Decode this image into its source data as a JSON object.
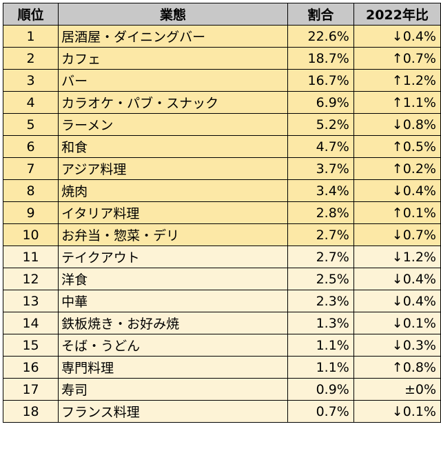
{
  "headers": {
    "rank": "順位",
    "category": "業態",
    "share": "割合",
    "change": "2022年比"
  },
  "rows": [
    {
      "rank": "1",
      "category": "居酒屋・ダイニングバー",
      "share": "22.6%",
      "change": "↓0.4%"
    },
    {
      "rank": "2",
      "category": "カフェ",
      "share": "18.7%",
      "change": "↑0.7%"
    },
    {
      "rank": "3",
      "category": "バー",
      "share": "16.7%",
      "change": "↑1.2%"
    },
    {
      "rank": "4",
      "category": "カラオケ・パブ・スナック",
      "share": "6.9%",
      "change": "↑1.1%"
    },
    {
      "rank": "5",
      "category": "ラーメン",
      "share": "5.2%",
      "change": "↓0.8%"
    },
    {
      "rank": "6",
      "category": "和食",
      "share": "4.7%",
      "change": "↑0.5%"
    },
    {
      "rank": "7",
      "category": "アジア料理",
      "share": "3.7%",
      "change": "↑0.2%"
    },
    {
      "rank": "8",
      "category": "焼肉",
      "share": "3.4%",
      "change": "↓0.4%"
    },
    {
      "rank": "9",
      "category": "イタリア料理",
      "share": "2.8%",
      "change": "↑0.1%"
    },
    {
      "rank": "10",
      "category": "お弁当・惣菜・デリ",
      "share": "2.7%",
      "change": "↓0.7%"
    },
    {
      "rank": "11",
      "category": "テイクアウト",
      "share": "2.7%",
      "change": "↓1.2%"
    },
    {
      "rank": "12",
      "category": "洋食",
      "share": "2.5%",
      "change": "↓0.4%"
    },
    {
      "rank": "13",
      "category": "中華",
      "share": "2.3%",
      "change": "↓0.4%"
    },
    {
      "rank": "14",
      "category": "鉄板焼き・お好み焼",
      "share": "1.3%",
      "change": "↓0.1%"
    },
    {
      "rank": "15",
      "category": "そば・うどん",
      "share": "1.1%",
      "change": "↓0.3%"
    },
    {
      "rank": "16",
      "category": "専門料理",
      "share": "1.1%",
      "change": "↑0.8%"
    },
    {
      "rank": "17",
      "category": "寿司",
      "share": "0.9%",
      "change": "±0%"
    },
    {
      "rank": "18",
      "category": "フランス料理",
      "share": "0.7%",
      "change": "↓0.1%"
    }
  ],
  "colors": {
    "header_bg": "#c8c8c8",
    "top10_bg": "#fce8a6",
    "rest_bg": "#fdf3d6"
  }
}
